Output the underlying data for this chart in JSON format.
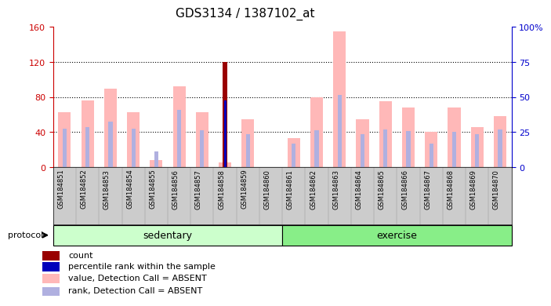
{
  "title": "GDS3134 / 1387102_at",
  "samples": [
    "GSM184851",
    "GSM184852",
    "GSM184853",
    "GSM184854",
    "GSM184855",
    "GSM184856",
    "GSM184857",
    "GSM184858",
    "GSM184859",
    "GSM184860",
    "GSM184861",
    "GSM184862",
    "GSM184863",
    "GSM184864",
    "GSM184865",
    "GSM184866",
    "GSM184867",
    "GSM184868",
    "GSM184869",
    "GSM184870"
  ],
  "value_absent": [
    63,
    76,
    90,
    63,
    8,
    92,
    63,
    5,
    55,
    0,
    33,
    80,
    155,
    55,
    75,
    68,
    40,
    68,
    46,
    58
  ],
  "rank_absent": [
    44,
    46,
    52,
    44,
    18,
    65,
    42,
    10,
    38,
    0,
    27,
    42,
    82,
    38,
    43,
    41,
    27,
    40,
    38,
    43
  ],
  "count_value": [
    0,
    0,
    0,
    0,
    0,
    0,
    0,
    120,
    0,
    0,
    0,
    0,
    0,
    0,
    0,
    0,
    0,
    0,
    0,
    0
  ],
  "percentile_rank": [
    0,
    0,
    0,
    0,
    0,
    0,
    0,
    76,
    0,
    0,
    0,
    0,
    0,
    0,
    0,
    0,
    0,
    0,
    0,
    0
  ],
  "sedentary_count": 10,
  "exercise_count": 10,
  "groups": [
    "sedentary",
    "exercise"
  ],
  "ylim_left": [
    0,
    160
  ],
  "ylim_right": [
    0,
    100
  ],
  "yticks_left": [
    0,
    40,
    80,
    120,
    160
  ],
  "yticks_right": [
    0,
    25,
    50,
    75,
    100
  ],
  "ytick_labels_right": [
    "0",
    "25",
    "50",
    "75",
    "100%"
  ],
  "color_value_absent": "#ffb8b8",
  "color_rank_absent": "#b0b0e0",
  "color_count": "#990000",
  "color_percentile": "#0000bb",
  "color_bg_sedentary": "#ccffcc",
  "color_bg_exercise": "#88ee88",
  "color_xticklabel_bg": "#cccccc",
  "protocol_label": "protocol",
  "title_fontsize": 11,
  "axis_label_color_left": "#cc0000",
  "axis_label_color_right": "#0000cc"
}
